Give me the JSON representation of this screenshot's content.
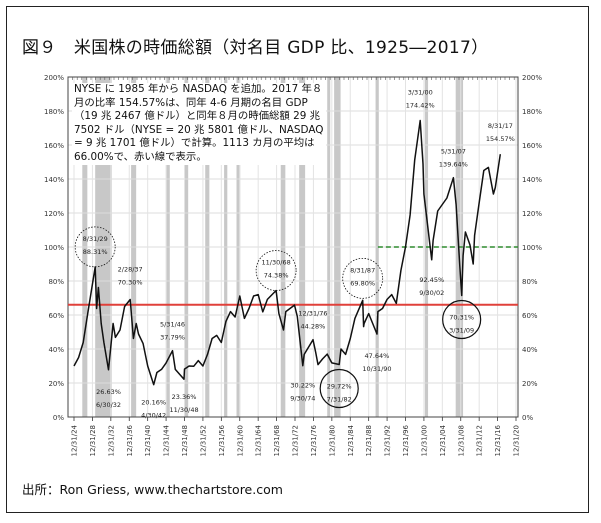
{
  "title": "図９　米国株の時価総額（対名目 GDP 比、1925―2017）",
  "note": "NYSE に 1985 年から NASDAQ を追加。2017 年８月の比率 154.57%は、同年 4-6 月期の名目 GDP（19 兆 2467 億ドル）と同年８月の時価総額 29 兆 7502 ドル（NYSE = 20 兆 5801 億ドル、NASDAQ = 9 兆 1701 億ドル）で計算。1113 カ月の平均は 66.00%で、赤い線で表示。",
  "source": "出所：Ron Griess, www.thechartstore.com",
  "chart_data": {
    "type": "line",
    "xlim": [
      1925,
      2021
    ],
    "ylim": [
      0,
      200
    ],
    "y_ticks": [
      "0%",
      "20%",
      "40%",
      "60%",
      "80%",
      "100%",
      "120%",
      "140%",
      "160%",
      "180%",
      "200%"
    ],
    "x_ticks": [
      "12/31/24",
      "12/31/28",
      "12/31/32",
      "12/31/36",
      "12/31/40",
      "12/31/44",
      "12/31/48",
      "12/31/52",
      "12/31/56",
      "12/31/60",
      "12/31/64",
      "12/31/68",
      "12/31/72",
      "12/31/76",
      "12/31/80",
      "12/31/84",
      "12/31/88",
      "12/31/92",
      "12/31/96",
      "12/31/00",
      "12/31/04",
      "12/31/08",
      "12/31/12",
      "12/31/16",
      "12/31/20"
    ],
    "grid": true,
    "average_line": {
      "value": 66.0,
      "color": "#e0403a"
    },
    "reference_line": {
      "value": 100,
      "color": "#2e8b2e",
      "style": "dashed"
    },
    "recession_shading": [
      [
        1926.8,
        1927.9
      ],
      [
        1929.6,
        1933.2
      ],
      [
        1937.4,
        1938.5
      ],
      [
        1945.1,
        1945.8
      ],
      [
        1948.9,
        1949.8
      ],
      [
        1953.5,
        1954.4
      ],
      [
        1957.6,
        1958.3
      ],
      [
        1960.3,
        1961.1
      ],
      [
        1969.9,
        1970.9
      ],
      [
        1973.9,
        1975.2
      ],
      [
        1980.0,
        1980.5
      ],
      [
        1981.5,
        1982.9
      ],
      [
        1990.5,
        1991.2
      ],
      [
        2001.2,
        2001.9
      ],
      [
        2007.9,
        2009.5
      ]
    ],
    "series": [
      {
        "x": [
          1925,
          1926,
          1927,
          1928,
          1929.6,
          1929.9,
          1930.3,
          1930.9,
          1931.5,
          1932.5,
          1933.5,
          1934,
          1935,
          1936,
          1937.2,
          1937.9,
          1938.5,
          1939,
          1940,
          1941,
          1942.3,
          1943,
          1944,
          1945,
          1946.4,
          1947,
          1948.9,
          1949,
          1950,
          1951,
          1952,
          1953,
          1954,
          1955,
          1956,
          1957,
          1958,
          1959,
          1960,
          1961,
          1962,
          1963,
          1964,
          1965,
          1966,
          1967,
          1968.9,
          1969.5,
          1970.5,
          1971,
          1972.9,
          1973.5,
          1974.7,
          1975,
          1976.9,
          1977.5,
          1978,
          1979,
          1980,
          1981,
          1982.6,
          1983,
          1984,
          1985,
          1986,
          1987.7,
          1987.9,
          1988,
          1989,
          1990.8,
          1991,
          1992,
          1993,
          1994,
          1995,
          1996,
          1997,
          1998,
          1999,
          2000.2,
          2000.8,
          2001,
          2002.7,
          2003,
          2004,
          2005,
          2006,
          2007.4,
          2008,
          2008.8,
          2009.2,
          2009.5,
          2010,
          2011,
          2011.7,
          2012,
          2013,
          2014,
          2015,
          2016.1,
          2016.5,
          2017.6
        ],
        "y": [
          30,
          35,
          45,
          60,
          88.3,
          65,
          75,
          55,
          45,
          26.6,
          55,
          48,
          50,
          65,
          70.3,
          45,
          55,
          50,
          42,
          30,
          20.2,
          25,
          28,
          33,
          37.8,
          28,
          23.4,
          27,
          30,
          31,
          32,
          30,
          38,
          45,
          48,
          45,
          55,
          62,
          60,
          70,
          58,
          65,
          70,
          72,
          63,
          68,
          74.4,
          62,
          50,
          62,
          67,
          58,
          30.2,
          38,
          44.3,
          38,
          32,
          33,
          37,
          33,
          29.7,
          40,
          38,
          45,
          58,
          69.8,
          52,
          55,
          62,
          47.6,
          62,
          65,
          68,
          72,
          68,
          85,
          100,
          120,
          150,
          174.4,
          150,
          130,
          92.5,
          105,
          120,
          125,
          130,
          139.6,
          125,
          90,
          70.3,
          95,
          110,
          100,
          90,
          108,
          125,
          145,
          148,
          130,
          135,
          154.6
        ]
      }
    ],
    "annotations": [
      {
        "date": "8/31/29",
        "value": "88.31%",
        "x": 1929.6,
        "y": 88.3,
        "pos": "above",
        "circle": "dotted"
      },
      {
        "date": "6/30/32",
        "value": "26.63%",
        "x": 1932.5,
        "y": 26.6,
        "pos": "below"
      },
      {
        "date": "2/28/37",
        "value": "70.30%",
        "x": 1937.2,
        "y": 70.3,
        "pos": "above"
      },
      {
        "date": "4/30/42",
        "value": "20.16%",
        "x": 1942.3,
        "y": 20.2,
        "pos": "below"
      },
      {
        "date": "5/31/46",
        "value": "37.79%",
        "x": 1946.4,
        "y": 37.8,
        "pos": "above"
      },
      {
        "date": "11/30/48",
        "value": "23.36%",
        "x": 1948.9,
        "y": 23.4,
        "pos": "below"
      },
      {
        "date": "11/30/68",
        "value": "74.38%",
        "x": 1968.9,
        "y": 74.4,
        "pos": "above",
        "circle": "dotted"
      },
      {
        "date": "9/30/74",
        "value": "30.22%",
        "x": 1974.7,
        "y": 30.2,
        "pos": "below"
      },
      {
        "date": "12/31/76",
        "value": "44.28%",
        "x": 1976.9,
        "y": 44.3,
        "pos": "above"
      },
      {
        "date": "7/31/82",
        "value": "29.72%",
        "x": 1982.6,
        "y": 29.7,
        "pos": "below",
        "circle": "solid"
      },
      {
        "date": "8/31/87",
        "value": "69.80%",
        "x": 1987.7,
        "y": 69.8,
        "pos": "above",
        "circle": "dotted"
      },
      {
        "date": "10/31/90",
        "value": "47.64%",
        "x": 1990.8,
        "y": 47.6,
        "pos": "below"
      },
      {
        "date": "3/31/00",
        "value": "174.42%",
        "x": 2000.2,
        "y": 174.4,
        "pos": "above"
      },
      {
        "date": "9/30/02",
        "value": "92.45%",
        "x": 2002.7,
        "y": 92.5,
        "pos": "below"
      },
      {
        "date": "5/31/07",
        "value": "139.64%",
        "x": 2007.4,
        "y": 139.6,
        "pos": "above"
      },
      {
        "date": "3/31/09",
        "value": "70.31%",
        "x": 2009.2,
        "y": 70.3,
        "pos": "below",
        "circle": "solid"
      },
      {
        "date": "8/31/17",
        "value": "154.57%",
        "x": 2017.6,
        "y": 154.6,
        "pos": "above"
      }
    ]
  }
}
